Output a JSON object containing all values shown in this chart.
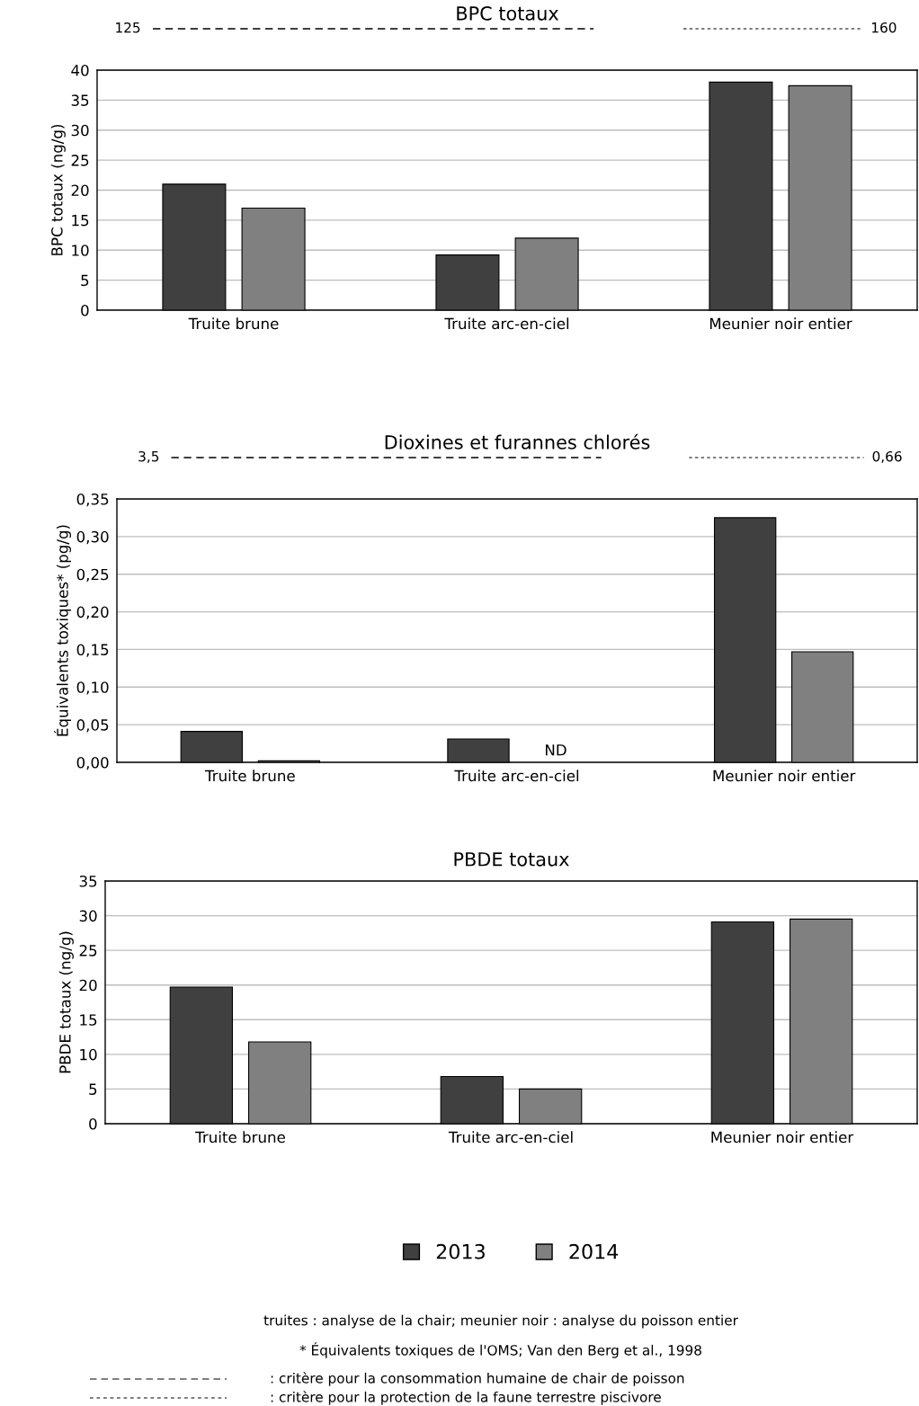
{
  "chart_data": [
    {
      "type": "bar",
      "title": "BPC totaux",
      "ylabel": "BPC totaux (ng/g)",
      "categories": [
        "Truite brune",
        "Truite arc-en-ciel",
        "Meunier noir entier"
      ],
      "series": [
        {
          "color": "#404040",
          "values": [
            21,
            9.2,
            38
          ]
        },
        {
          "color": "#808080",
          "values": [
            17,
            12,
            37.4
          ]
        }
      ],
      "ylim": [
        0,
        40
      ],
      "yticks": [
        0,
        5,
        10,
        15,
        20,
        25,
        30,
        35,
        40
      ],
      "grid": "y",
      "annotations": [
        "125",
        "160"
      ]
    },
    {
      "type": "bar",
      "title": "Dioxines et furannes chlorés",
      "ylabel": "Équivalents toxiques* (pg/g)",
      "categories": [
        "Truite brune",
        "Truite arc-en-ciel",
        "Meunier noir entier"
      ],
      "series": [
        {
          "color": "#404040",
          "values": [
            0.041,
            0.031,
            0.325
          ]
        },
        {
          "color": "#808080",
          "values": [
            0.002,
            null,
            0.147
          ],
          "value_labels": [
            null,
            "ND",
            null
          ]
        }
      ],
      "ylim": [
        0,
        0.35
      ],
      "yticks": [
        {
          "value": 0,
          "label": "0,00"
        },
        {
          "value": 0.05,
          "label": "0,05"
        },
        {
          "value": 0.1,
          "label": "0,10"
        },
        {
          "value": 0.15,
          "label": "0,15"
        },
        {
          "value": 0.2,
          "label": "0,20"
        },
        {
          "value": 0.25,
          "label": "0,25"
        },
        {
          "value": 0.3,
          "label": "0,30"
        },
        {
          "value": 0.35,
          "label": "0,35"
        }
      ],
      "grid": "y",
      "annotations": [
        "3,5",
        "0,66"
      ]
    },
    {
      "type": "bar",
      "title": "PBDE totaux",
      "ylabel": "PBDE totaux (ng/g)",
      "categories": [
        "Truite brune",
        "Truite arc-en-ciel",
        "Meunier noir entier"
      ],
      "series": [
        {
          "name": "2013",
          "color": "#404040",
          "values": [
            19.7,
            6.8,
            29.1
          ]
        },
        {
          "name": "2014",
          "color": "#808080",
          "values": [
            11.8,
            5.0,
            29.5
          ]
        }
      ],
      "ylim": [
        0,
        35
      ],
      "yticks": [
        0,
        5,
        10,
        15,
        20,
        25,
        30,
        35
      ],
      "grid": "y",
      "legend": "bottom",
      "annotations": [
        "truites : analyse de la chair; meunier noir : analyse du poisson entier",
        "* Équivalents toxiques de l'OMS; Van den Berg et al., 1998",
        ": critère pour la consommation humaine de chair de poisson",
        ": critère pour la protection de la faune terrestre piscivore"
      ]
    }
  ]
}
